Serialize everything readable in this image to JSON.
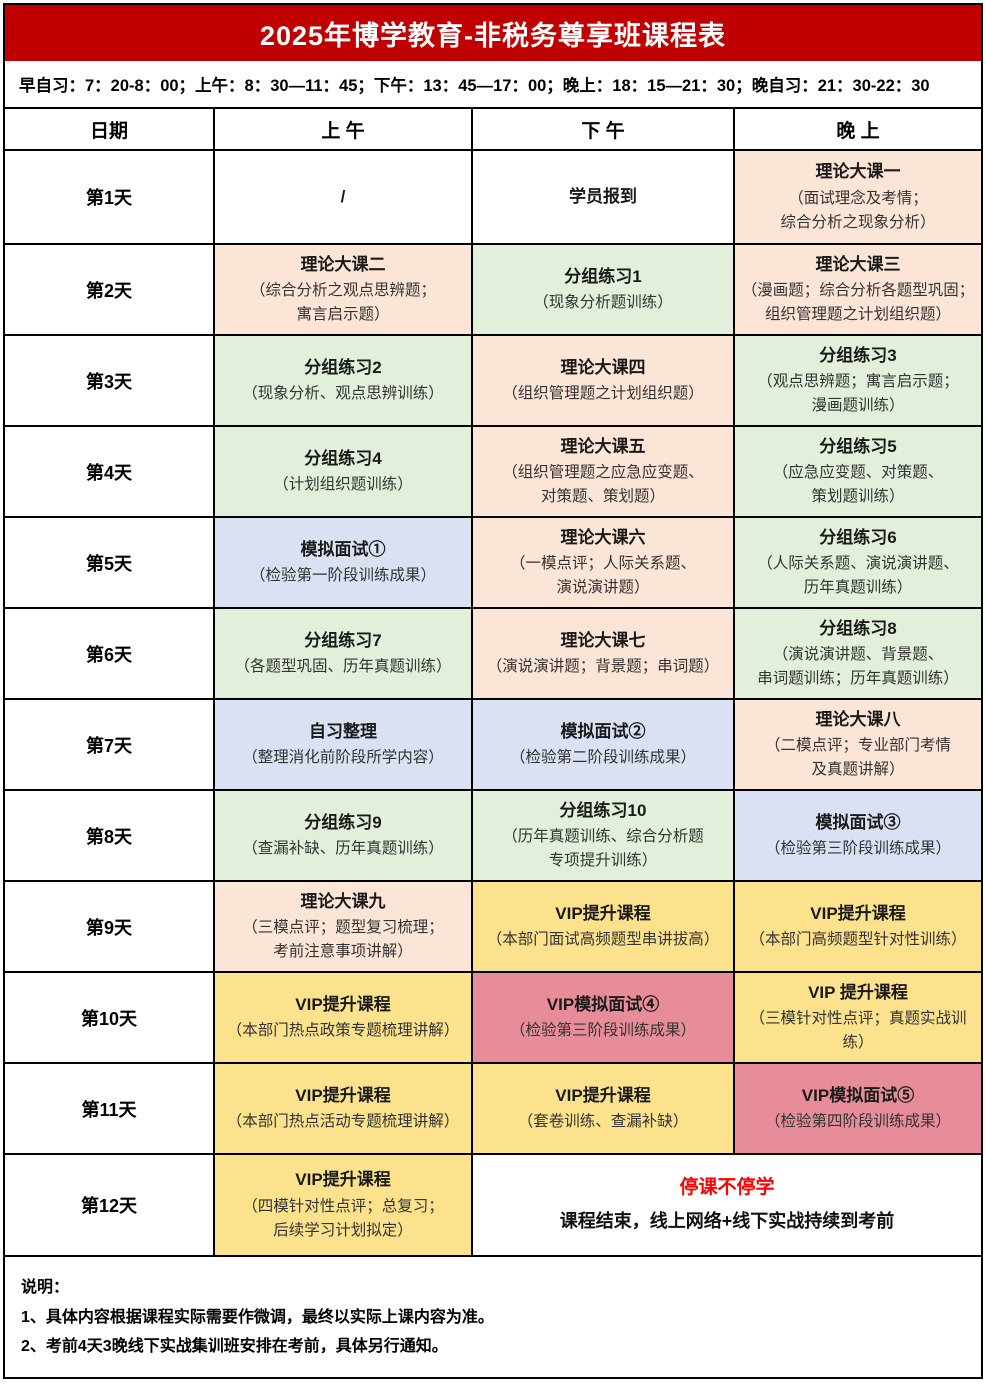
{
  "title": "2025年博学教育-非税务尊享班课程表",
  "schedule_line": "早自习：7：20-8：00；上午：8：30—11：45；下午：13：45—17：00；晚上：18：15—21：30；晚自习：21：30-22：30",
  "columns": [
    "日期",
    "上 午",
    "下 午",
    "晚 上"
  ],
  "colors": {
    "banner": "#c00000",
    "plain": "#ffffff",
    "theory": "#fbe5d6",
    "group": "#e2efda",
    "mock": "#d9e1f2",
    "vip": "#fce28c",
    "vipmock": "#e78d9a",
    "notice_red": "#fe0000",
    "grid_line": "#000000"
  },
  "rows": [
    {
      "day": "第1天",
      "cells": [
        {
          "type": "plain",
          "title": "/",
          "subtitle": ""
        },
        {
          "type": "plain",
          "title": "学员报到",
          "subtitle": ""
        },
        {
          "type": "theory",
          "title": "理论大课一",
          "subtitle": "（面试理念及考情；\n综合分析之现象分析）"
        }
      ]
    },
    {
      "day": "第2天",
      "cells": [
        {
          "type": "theory",
          "title": "理论大课二",
          "subtitle": "（综合分析之观点思辨题；\n寓言启示题）"
        },
        {
          "type": "group",
          "title": "分组练习1",
          "subtitle": "（现象分析题训练）"
        },
        {
          "type": "theory",
          "title": "理论大课三",
          "subtitle": "（漫画题；综合分析各题型巩固；\n组织管理题之计划组织题）"
        }
      ]
    },
    {
      "day": "第3天",
      "cells": [
        {
          "type": "group",
          "title": "分组练习2",
          "subtitle": "（现象分析、观点思辨训练）"
        },
        {
          "type": "theory",
          "title": "理论大课四",
          "subtitle": "（组织管理题之计划组织题）"
        },
        {
          "type": "group",
          "title": "分组练习3",
          "subtitle": "（观点思辨题；寓言启示题；\n漫画题训练）"
        }
      ]
    },
    {
      "day": "第4天",
      "cells": [
        {
          "type": "group",
          "title": "分组练习4",
          "subtitle": "（计划组织题训练）"
        },
        {
          "type": "theory",
          "title": "理论大课五",
          "subtitle": "（组织管理题之应急应变题、\n对策题、策划题）"
        },
        {
          "type": "group",
          "title": "分组练习5",
          "subtitle": "（应急应变题、对策题、\n策划题训练）"
        }
      ]
    },
    {
      "day": "第5天",
      "cells": [
        {
          "type": "mock",
          "title": "模拟面试①",
          "subtitle": "（检验第一阶段训练成果）"
        },
        {
          "type": "theory",
          "title": "理论大课六",
          "subtitle": "（一模点评；人际关系题、\n演说演讲题）"
        },
        {
          "type": "group",
          "title": "分组练习6",
          "subtitle": "（人际关系题、演说演讲题、\n历年真题训练）"
        }
      ]
    },
    {
      "day": "第6天",
      "cells": [
        {
          "type": "group",
          "title": "分组练习7",
          "subtitle": "（各题型巩固、历年真题训练）"
        },
        {
          "type": "theory",
          "title": "理论大课七",
          "subtitle": "（演说演讲题；背景题；串词题）"
        },
        {
          "type": "group",
          "title": "分组练习8",
          "subtitle": "（演说演讲题、背景题、\n串词题训练；历年真题训练）"
        }
      ]
    },
    {
      "day": "第7天",
      "cells": [
        {
          "type": "mock",
          "title": "自习整理",
          "subtitle": "（整理消化前阶段所学内容）"
        },
        {
          "type": "mock",
          "title": "模拟面试②",
          "subtitle": "（检验第二阶段训练成果）"
        },
        {
          "type": "theory",
          "title": "理论大课八",
          "subtitle": "（二模点评；专业部门考情\n及真题讲解）"
        }
      ]
    },
    {
      "day": "第8天",
      "cells": [
        {
          "type": "group",
          "title": "分组练习9",
          "subtitle": "（查漏补缺、历年真题训练）"
        },
        {
          "type": "group",
          "title": "分组练习10",
          "subtitle": "（历年真题训练、综合分析题\n专项提升训练）"
        },
        {
          "type": "mock",
          "title": "模拟面试③",
          "subtitle": "（检验第三阶段训练成果）"
        }
      ]
    },
    {
      "day": "第9天",
      "cells": [
        {
          "type": "theory",
          "title": "理论大课九",
          "subtitle": "（三模点评；题型复习梳理；\n考前注意事项讲解）"
        },
        {
          "type": "vip",
          "title": "VIP提升课程",
          "subtitle": "（本部门面试高频题型串讲拔高）"
        },
        {
          "type": "vip",
          "title": "VIP提升课程",
          "subtitle": "（本部门高频题型针对性训练）"
        }
      ]
    },
    {
      "day": "第10天",
      "cells": [
        {
          "type": "vip",
          "title": "VIP提升课程",
          "subtitle": "（本部门热点政策专题梳理讲解）"
        },
        {
          "type": "vipmock",
          "title": "VIP模拟面试④",
          "subtitle": "（检验第三阶段训练成果）"
        },
        {
          "type": "vip",
          "title": "VIP 提升课程",
          "subtitle": "（三模针对性点评；真题实战训练）"
        }
      ]
    },
    {
      "day": "第11天",
      "cells": [
        {
          "type": "vip",
          "title": "VIP提升课程",
          "subtitle": "（本部门热点活动专题梳理讲解）"
        },
        {
          "type": "vip",
          "title": "VIP提升课程",
          "subtitle": "（套卷训练、查漏补缺）"
        },
        {
          "type": "vipmock",
          "title": "VIP模拟面试⑤",
          "subtitle": "（检验第四阶段训练成果）"
        }
      ]
    },
    {
      "day": "第12天",
      "cells": [
        {
          "type": "vip",
          "title": "VIP提升课程",
          "subtitle": "（四模针对性点评；总复习；\n后续学习计划拟定）"
        },
        {
          "type": "notice",
          "span": 2,
          "title": "停课不停学",
          "subtitle": "课程结束，线上网络+线下实战持续到考前"
        }
      ]
    }
  ],
  "notes": {
    "heading": "说明：",
    "items": [
      "1、具体内容根据课程实际需要作微调，最终以实际上课内容为准。",
      "2、考前4天3晚线下实战集训班安排在考前，具体另行通知。"
    ]
  }
}
